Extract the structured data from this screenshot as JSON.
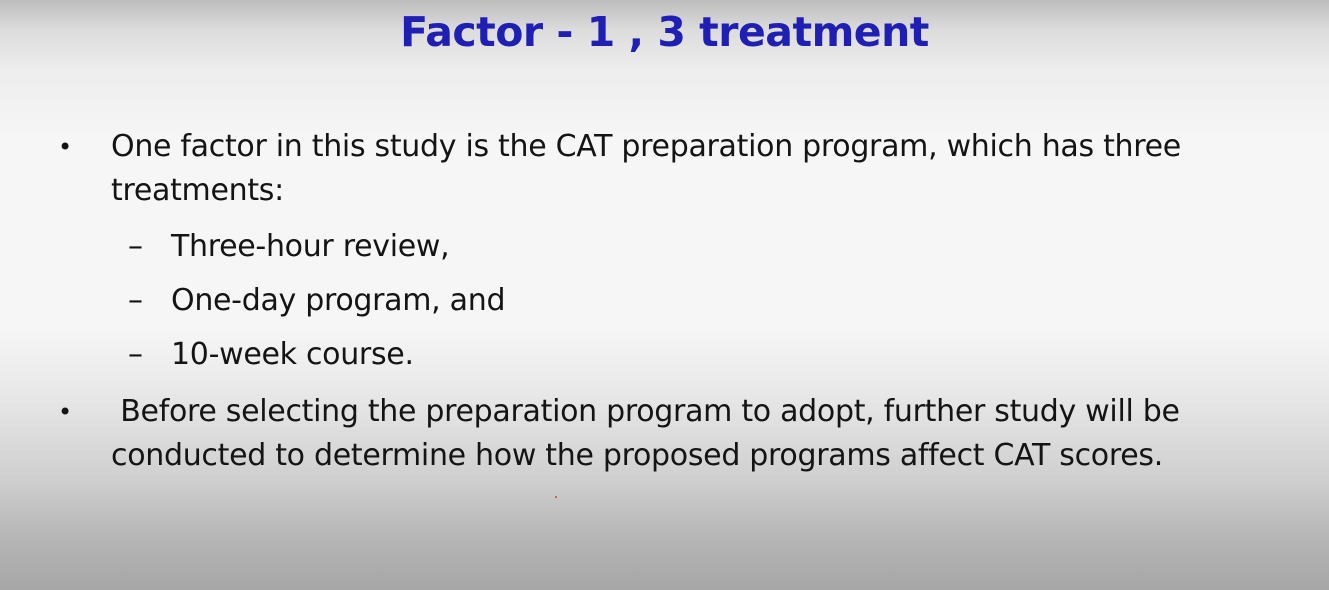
{
  "slide": {
    "title": "Factor - 1 , 3 treatment",
    "bullets": [
      {
        "marker": "•",
        "text": "One factor in this study is the CAT preparation program, which has three treatments:",
        "sub_items": [
          {
            "marker": "–",
            "text": "Three-hour review,"
          },
          {
            "marker": "–",
            "text": "One-day program, and"
          },
          {
            "marker": "–",
            "text": "10-week course."
          }
        ]
      },
      {
        "marker": "•",
        "text": " Before selecting the preparation program to adopt, further study will be conducted to determine how the proposed programs affect CAT scores."
      }
    ]
  },
  "colors": {
    "title": "#1f1fb4",
    "body_text": "#141414"
  }
}
